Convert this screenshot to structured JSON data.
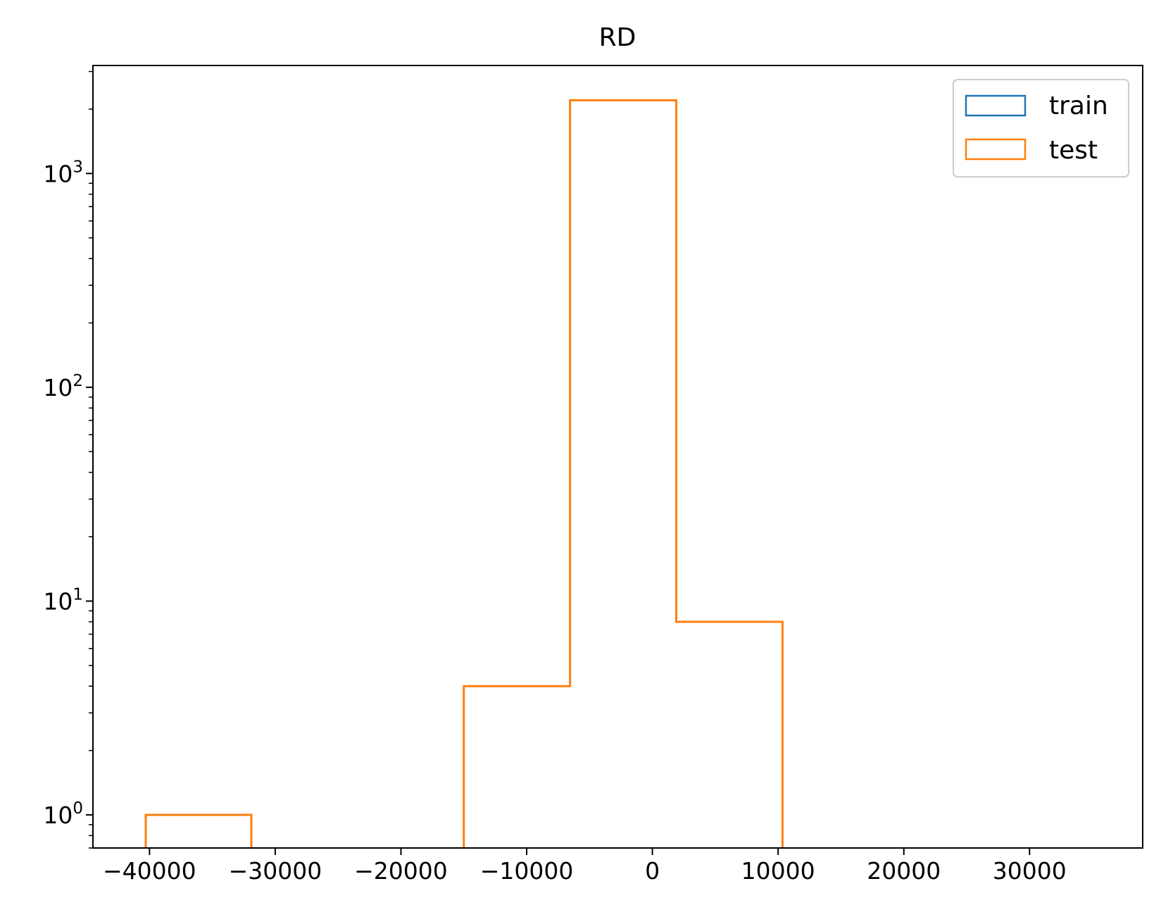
{
  "chart_data": {
    "type": "histogram",
    "title": "RD",
    "xlabel": "",
    "ylabel": "",
    "yscale": "log",
    "grid": false,
    "legend_position": "top-right",
    "xlim": [
      -44500,
      39000
    ],
    "ylim": [
      0.7,
      3200
    ],
    "xticks": [
      {
        "value": -40000,
        "label": "−40000"
      },
      {
        "value": -30000,
        "label": "−30000"
      },
      {
        "value": -20000,
        "label": "−20000"
      },
      {
        "value": -10000,
        "label": "−10000"
      },
      {
        "value": 0,
        "label": "0"
      },
      {
        "value": 10000,
        "label": "10000"
      },
      {
        "value": 20000,
        "label": "20000"
      },
      {
        "value": 30000,
        "label": "30000"
      }
    ],
    "yticks": [
      {
        "value": 1,
        "base": "10",
        "exp": "0"
      },
      {
        "value": 10,
        "base": "10",
        "exp": "1"
      },
      {
        "value": 100,
        "base": "10",
        "exp": "2"
      },
      {
        "value": 1000,
        "base": "10",
        "exp": "3"
      }
    ],
    "series": [
      {
        "name": "train",
        "color": "#1f77b4",
        "histtype": "step",
        "bin_edges": [],
        "counts": []
      },
      {
        "name": "test",
        "color": "#ff7f0e",
        "histtype": "step",
        "bin_edges": [
          -40300,
          -31900,
          -23400,
          -15000,
          -6550,
          1900,
          10350
        ],
        "counts": [
          1,
          0,
          0,
          4,
          2200,
          8
        ]
      }
    ]
  }
}
